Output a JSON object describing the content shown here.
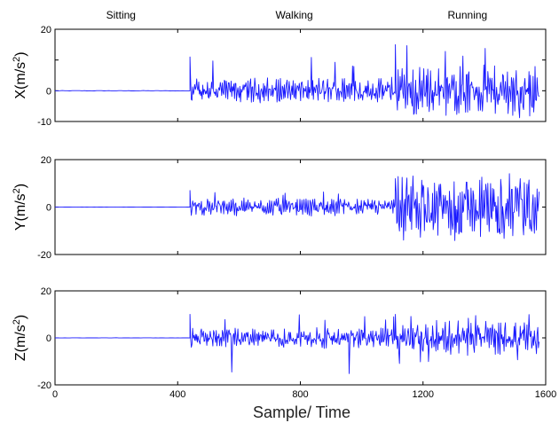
{
  "chart_data": {
    "type": "line",
    "activity_labels": [
      {
        "text": "Sitting",
        "x_center": 215
      },
      {
        "text": "Walking",
        "x_center": 780
      },
      {
        "text": "Running",
        "x_center": 1345
      }
    ],
    "xlabel": "Sample/ Time",
    "xlim": [
      0,
      1600
    ],
    "xticks": [
      0,
      400,
      800,
      1200,
      1600
    ],
    "panels": [
      {
        "id": "x",
        "ylabel_base": "X(m/s",
        "ylabel_sup": "2",
        "ylabel_close": ")",
        "ylim": [
          -10,
          20
        ],
        "yticks": [
          20,
          10,
          0,
          -10
        ],
        "ytick_labels": [
          "20",
          "",
          "0",
          "-10"
        ],
        "segments": [
          {
            "activity": "Sitting",
            "x": [
              0,
              440
            ],
            "amplitude": 0.3
          },
          {
            "activity": "Walking",
            "x": [
              440,
              1110
            ],
            "amplitude": 3.5,
            "peak": 11
          },
          {
            "activity": "Running",
            "x": [
              1110,
              1580
            ],
            "amplitude": 6.5,
            "peak": 15,
            "trough": -9
          }
        ]
      },
      {
        "id": "y",
        "ylabel_base": "Y(m/s",
        "ylabel_sup": "2",
        "ylabel_close": ")",
        "ylim": [
          -20,
          20
        ],
        "yticks": [
          20,
          0,
          -20
        ],
        "ytick_labels": [
          "20",
          "0",
          "-20"
        ],
        "segments": [
          {
            "activity": "Sitting",
            "x": [
              0,
              440
            ],
            "amplitude": 0.2
          },
          {
            "activity": "Walking",
            "x": [
              440,
              1110
            ],
            "amplitude": 3,
            "peak": 7
          },
          {
            "activity": "Running",
            "x": [
              1110,
              1580
            ],
            "amplitude": 11,
            "peak": 12,
            "trough": -12
          }
        ]
      },
      {
        "id": "z",
        "ylabel_base": "Z(m/s",
        "ylabel_sup": "2",
        "ylabel_close": ")",
        "ylim": [
          -20,
          20
        ],
        "yticks": [
          20,
          0,
          -20
        ],
        "ytick_labels": [
          "20",
          "0",
          "-20"
        ],
        "segments": [
          {
            "activity": "Sitting",
            "x": [
              0,
              440
            ],
            "amplitude": 0.3
          },
          {
            "activity": "Walking",
            "x": [
              440,
              1110
            ],
            "amplitude": 3.5,
            "peak": 10,
            "trough": -17
          },
          {
            "activity": "Running",
            "x": [
              1110,
              1580
            ],
            "amplitude": 6,
            "peak": 10,
            "trough": -12
          }
        ]
      }
    ]
  }
}
